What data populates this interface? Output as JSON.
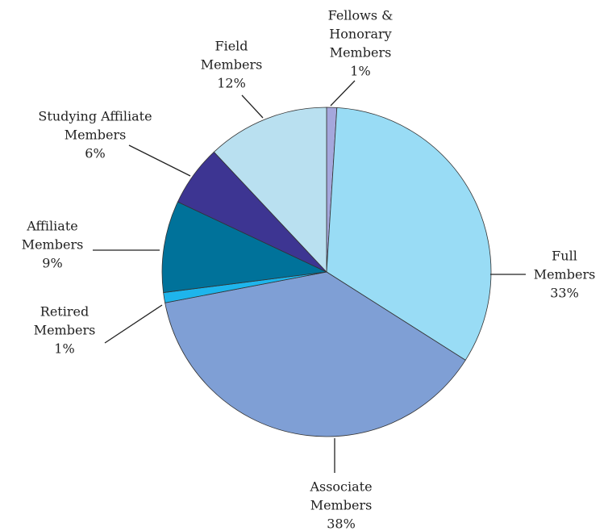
{
  "chart_data": {
    "type": "pie",
    "categories": [
      [
        "Fellows &",
        "Honorary",
        "Members"
      ],
      [
        "Full",
        "Members"
      ],
      [
        "Associate",
        "Members"
      ],
      [
        "Retired",
        "Members"
      ],
      [
        "Affiliate",
        "Members"
      ],
      [
        "Studying Affiliate",
        "Members"
      ],
      [
        "Field",
        "Members"
      ]
    ],
    "values": [
      1,
      33,
      38,
      1,
      9,
      6,
      12
    ],
    "value_labels": [
      "1%",
      "33%",
      "38%",
      "1%",
      "9%",
      "6%",
      "12%"
    ],
    "colors": [
      "#a5a7dc",
      "#99dcf5",
      "#7f9fd5",
      "#1eb5ec",
      "#00729a",
      "#3d3592",
      "#b9e0f0"
    ]
  }
}
